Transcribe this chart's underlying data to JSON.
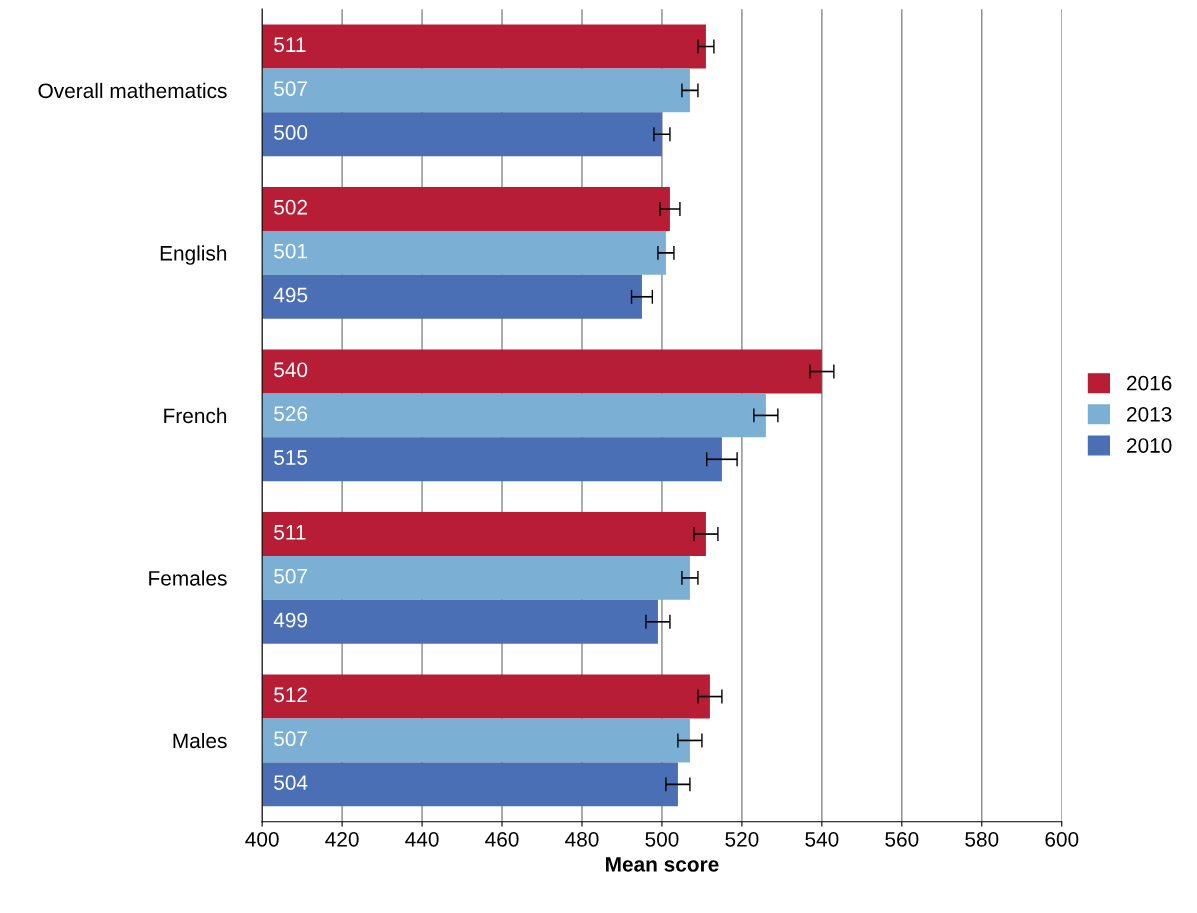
{
  "chart_data": {
    "type": "bar",
    "orientation": "horizontal",
    "xlabel": "Mean score",
    "categories": [
      "Overall mathematics",
      "English",
      "French",
      "Females",
      "Males"
    ],
    "series": [
      {
        "name": "2016",
        "color": "#b81d36",
        "values": [
          511,
          502,
          540,
          511,
          512
        ],
        "errors": [
          2,
          2.5,
          3,
          3,
          3
        ]
      },
      {
        "name": "2013",
        "color": "#7bafd4",
        "values": [
          507,
          501,
          526,
          507,
          507
        ],
        "errors": [
          2,
          2,
          3,
          2,
          3
        ]
      },
      {
        "name": "2010",
        "color": "#4a6fb5",
        "values": [
          500,
          495,
          515,
          499,
          504
        ],
        "errors": [
          2,
          2.6,
          3.8,
          3,
          3
        ]
      }
    ],
    "xlim": [
      400,
      600
    ],
    "xticks": [
      400,
      420,
      440,
      460,
      480,
      500,
      520,
      540,
      560,
      580,
      600
    ],
    "grid": "x",
    "legend": "right",
    "data_labels": true
  }
}
